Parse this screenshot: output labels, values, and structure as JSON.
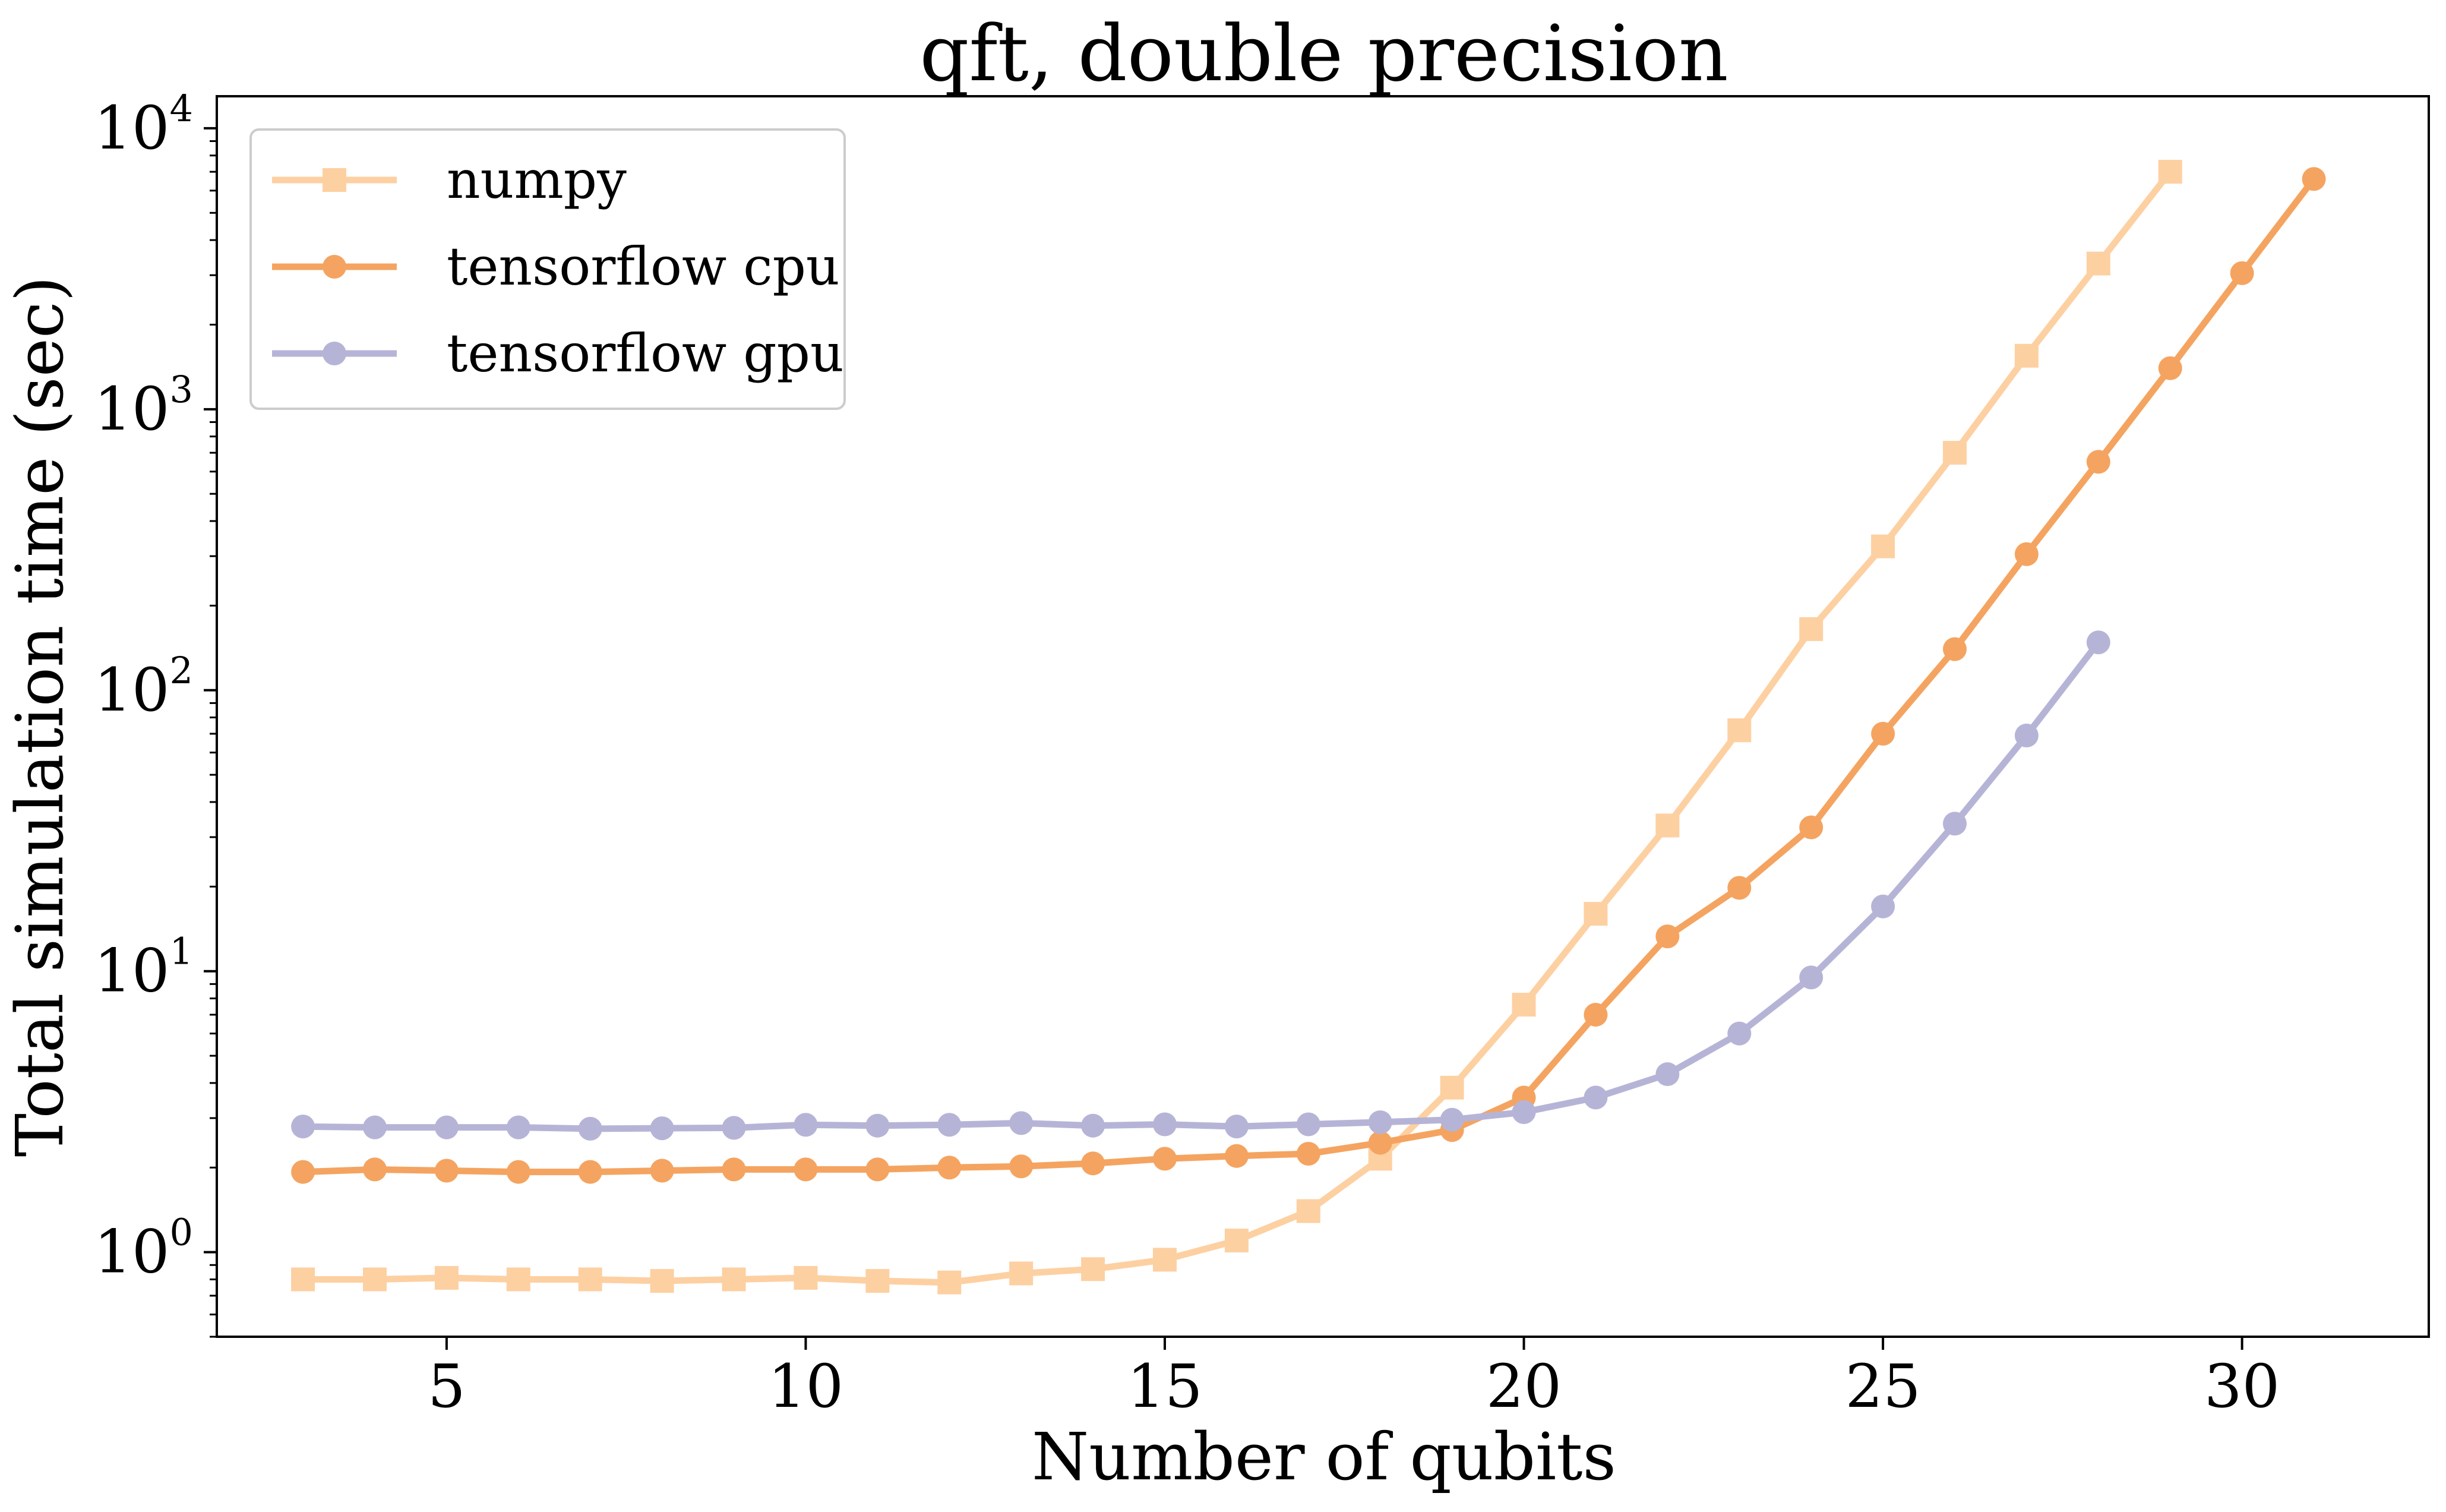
{
  "chart_data": {
    "type": "line",
    "title": "qft, double precision",
    "xlabel": "Number of qubits",
    "ylabel": "Total simulation time (sec)",
    "xlim": [
      1.8,
      32.6
    ],
    "ylim": [
      0.5,
      13000
    ],
    "yscale": "log",
    "xticks": [
      5,
      10,
      15,
      20,
      25,
      30
    ],
    "xtick_labels": [
      "5",
      "10",
      "15",
      "20",
      "25",
      "30"
    ],
    "yticks": [
      {
        "value": 1,
        "base": "10",
        "exp": "0"
      },
      {
        "value": 10,
        "base": "10",
        "exp": "1"
      },
      {
        "value": 100,
        "base": "10",
        "exp": "2"
      },
      {
        "value": 1000,
        "base": "10",
        "exp": "3"
      },
      {
        "value": 10000,
        "base": "10",
        "exp": "4"
      }
    ],
    "grid": false,
    "legend_position": "top-left",
    "series": [
      {
        "name": "numpy",
        "color": "#fdd0a2",
        "marker": "square",
        "x": [
          3,
          4,
          5,
          6,
          7,
          8,
          9,
          10,
          11,
          12,
          13,
          14,
          15,
          16,
          17,
          18,
          19,
          20,
          21,
          22,
          23,
          24,
          25,
          26,
          27,
          28,
          29
        ],
        "y": [
          0.8,
          0.8,
          0.81,
          0.8,
          0.8,
          0.79,
          0.8,
          0.81,
          0.79,
          0.78,
          0.84,
          0.87,
          0.94,
          1.1,
          1.4,
          2.15,
          3.85,
          7.6,
          16,
          33,
          72,
          165,
          325,
          700,
          1550,
          3300,
          7000
        ]
      },
      {
        "name": "tensorflow cpu",
        "color": "#f4a460",
        "marker": "circle",
        "x": [
          3,
          4,
          5,
          6,
          7,
          8,
          9,
          10,
          11,
          12,
          13,
          14,
          15,
          16,
          17,
          18,
          19,
          20,
          21,
          22,
          23,
          24,
          25,
          26,
          27,
          28,
          29,
          30,
          31
        ],
        "y": [
          1.93,
          1.97,
          1.95,
          1.93,
          1.93,
          1.95,
          1.97,
          1.97,
          1.97,
          2.0,
          2.02,
          2.07,
          2.15,
          2.2,
          2.24,
          2.45,
          2.72,
          3.55,
          7.0,
          13.3,
          19.8,
          32.5,
          70,
          140,
          305,
          650,
          1400,
          3050,
          6600
        ]
      },
      {
        "name": "tensorflow gpu",
        "color": "#b6b4d6",
        "marker": "circle",
        "x": [
          3,
          4,
          5,
          6,
          7,
          8,
          9,
          10,
          11,
          12,
          13,
          14,
          15,
          16,
          17,
          18,
          19,
          20,
          21,
          22,
          23,
          24,
          25,
          26,
          27,
          28
        ],
        "y": [
          2.8,
          2.78,
          2.78,
          2.78,
          2.75,
          2.76,
          2.77,
          2.84,
          2.82,
          2.84,
          2.88,
          2.82,
          2.85,
          2.8,
          2.85,
          2.9,
          2.96,
          3.15,
          3.55,
          4.3,
          6.0,
          9.5,
          17,
          33.5,
          69,
          148
        ]
      }
    ]
  }
}
